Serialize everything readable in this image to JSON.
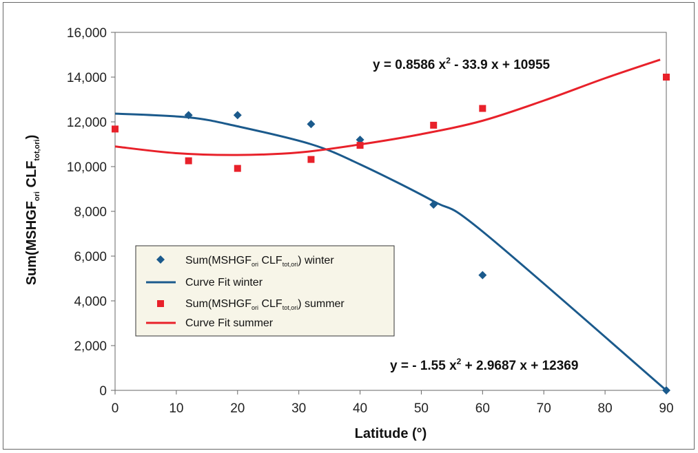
{
  "chart_data": {
    "type": "scatter",
    "xlabel": "Latitude (°)",
    "ylabel": {
      "prefix": "Sum(MSHGF",
      "sub1": "ori",
      "mid": " CLF",
      "sub2": "tot,ori",
      "suffix": ")"
    },
    "xlim": [
      0,
      90
    ],
    "ylim": [
      0,
      16000
    ],
    "x_ticks": [
      0,
      10,
      20,
      30,
      40,
      50,
      60,
      70,
      80,
      90
    ],
    "y_ticks": [
      0,
      2000,
      4000,
      6000,
      8000,
      10000,
      12000,
      14000,
      16000
    ],
    "y_tick_labels": [
      "0",
      "2,000",
      "4,000",
      "6,000",
      "8,000",
      "10,000",
      "12,000",
      "14,000",
      "16,000"
    ],
    "grid": false,
    "legend_position": "center-left",
    "series": [
      {
        "name": "Sum(MSHGF ori CLF tot,ori) winter",
        "label": {
          "prefix": "Sum(MSHGF",
          "sub1": "ori",
          "mid": " CLF",
          "sub2": "tot,ori",
          "suffix": ") winter"
        },
        "kind": "points",
        "marker": "diamond",
        "color": "#1b5a8c",
        "x": [
          12,
          20,
          32,
          40,
          52,
          60,
          90
        ],
        "y": [
          12300,
          12300,
          11900,
          11200,
          8300,
          5150,
          0
        ]
      },
      {
        "name": "Curve Fit winter",
        "label": {
          "prefix": "Curve Fit winter",
          "sub1": "",
          "mid": "",
          "sub2": "",
          "suffix": ""
        },
        "kind": "curve",
        "color": "#1b5a8c",
        "x": [
          0,
          12,
          20,
          32,
          40,
          52,
          60,
          90
        ],
        "y": [
          12369,
          12200,
          11800,
          11000,
          10100,
          8450,
          7100,
          0
        ]
      },
      {
        "name": "Sum(MSHGF ori CLF tot,ori) summer",
        "label": {
          "prefix": "Sum(MSHGF",
          "sub1": "ori",
          "mid": " CLF",
          "sub2": "tot,ori",
          "suffix": ") summer"
        },
        "kind": "points",
        "marker": "square",
        "color": "#e8212a",
        "x": [
          0,
          12,
          20,
          32,
          40,
          52,
          60,
          90
        ],
        "y": [
          11680,
          10260,
          9920,
          10320,
          10950,
          11850,
          12600,
          14000
        ]
      },
      {
        "name": "Curve Fit summer",
        "label": {
          "prefix": "Curve Fit summer",
          "sub1": "",
          "mid": "",
          "sub2": "",
          "suffix": ""
        },
        "kind": "curve",
        "color": "#e8212a",
        "x": [
          0,
          10,
          20,
          30,
          40,
          50,
          60,
          70,
          80,
          89
        ],
        "y": [
          10900,
          10600,
          10520,
          10630,
          10990,
          11450,
          12050,
          12950,
          13950,
          14780
        ]
      }
    ],
    "annotations": [
      {
        "id": "summer_eq",
        "parts": [
          "y = 0.8586 x",
          "2",
          " - 33.9 x + 10955"
        ]
      },
      {
        "id": "winter_eq",
        "parts": [
          "y = - 1.55 x",
          "2",
          " + 2.9687 x + 12369"
        ]
      }
    ]
  }
}
